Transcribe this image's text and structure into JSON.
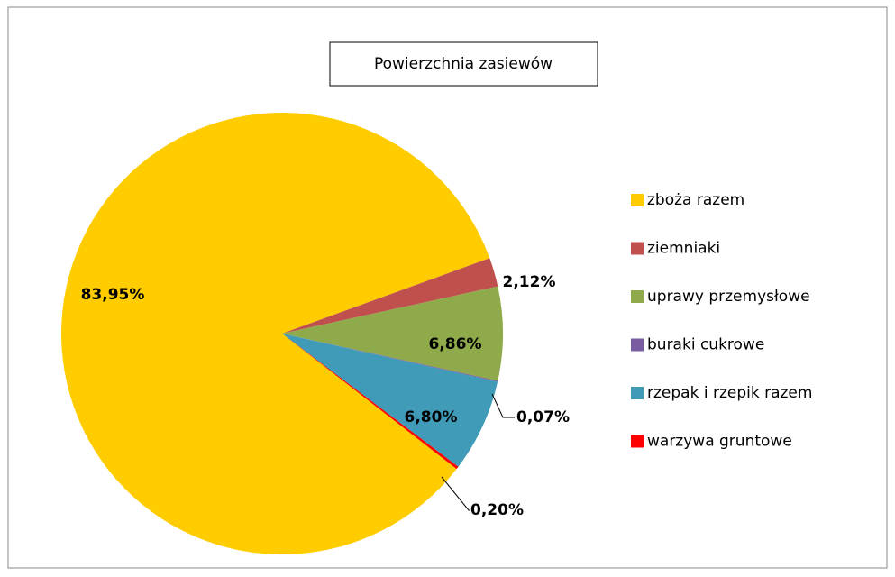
{
  "chart_data": {
    "type": "pie",
    "title": "Powierzchnia zasiewów",
    "categories": [
      "zboża razem",
      "ziemniaki",
      "uprawy przemysłowe",
      "buraki cukrowe",
      "rzepak i rzepik razem",
      "warzywa gruntowe"
    ],
    "values": [
      83.95,
      2.12,
      6.86,
      0.07,
      6.8,
      0.2
    ],
    "value_labels": [
      "83,95%",
      "2,12%",
      "6,86%",
      "0,07%",
      "6,80%",
      "0,20%"
    ],
    "colors": [
      "#ffcc00",
      "#c0504d",
      "#8faa4a",
      "#7a5ca0",
      "#3f9bb8",
      "#ff0000"
    ],
    "legend": "right"
  }
}
